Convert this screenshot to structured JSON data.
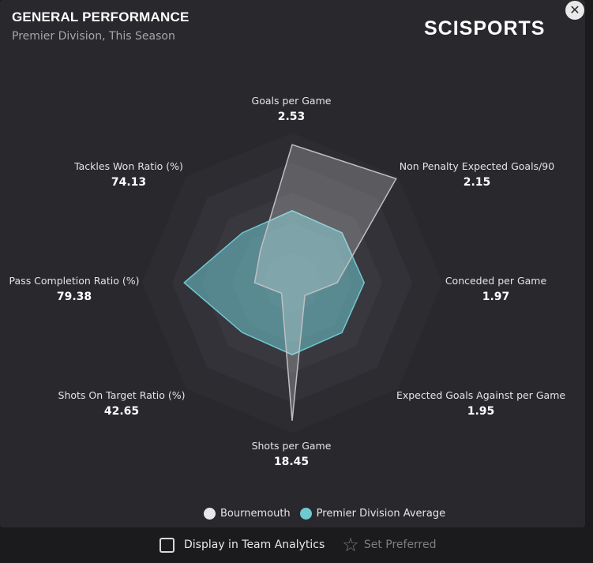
{
  "header": {
    "title": "GENERAL PERFORMANCE",
    "subtitle": "Premier Division, This Season",
    "logo_text": "SCISPORTS",
    "close_icon": "close-icon"
  },
  "colors": {
    "team": "#e8e8ea",
    "average": "#6fc9d0",
    "ring_outer": "#2f2e33",
    "ring_inner": "#4a4950"
  },
  "chart_data": {
    "type": "radar",
    "title": "GENERAL PERFORMANCE",
    "subtitle": "Premier Division, This Season",
    "axes": [
      {
        "label": "Goals per Game",
        "value": "2.53"
      },
      {
        "label": "Non Penalty Expected Goals/90",
        "value": "2.15"
      },
      {
        "label": "Conceded per Game",
        "value": "1.97"
      },
      {
        "label": "Expected Goals Against per Game",
        "value": "1.95"
      },
      {
        "label": "Shots per Game",
        "value": "18.45"
      },
      {
        "label": "Shots On Target Ratio (%)",
        "value": "42.65"
      },
      {
        "label": "Pass Completion Ratio (%)",
        "value": "79.38"
      },
      {
        "label": "Tackles Won Ratio (%)",
        "value": "74.13"
      }
    ],
    "series": [
      {
        "name": "Bournemouth",
        "color": "#e8e8ea",
        "values": [
          0.92,
          0.98,
          0.3,
          0.12,
          0.92,
          0.1,
          0.25,
          0.3
        ]
      },
      {
        "name": "Premier Division Average",
        "color": "#6fc9d0",
        "values": [
          0.48,
          0.47,
          0.48,
          0.47,
          0.48,
          0.47,
          0.72,
          0.47
        ]
      }
    ],
    "range": [
      0,
      1
    ],
    "rings": 5,
    "legend_position": "bottom"
  },
  "legend": {
    "team_label": "Bournemouth",
    "average_label": "Premier Division Average"
  },
  "footer": {
    "checkbox_label": "Display in Team Analytics",
    "checkbox_checked": false,
    "preferred_label": "Set Preferred"
  }
}
